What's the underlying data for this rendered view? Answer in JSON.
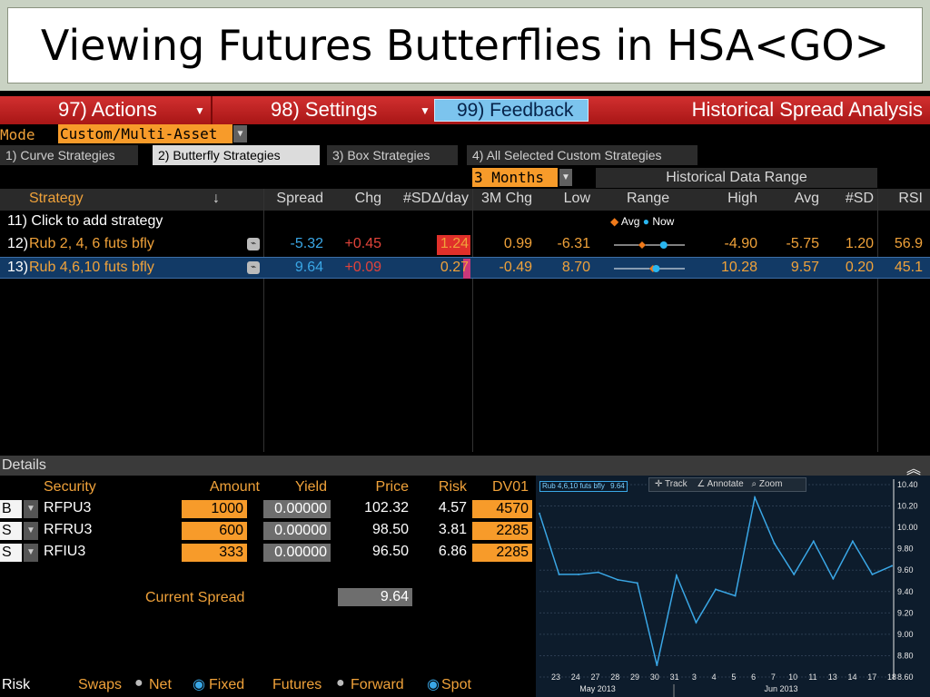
{
  "slide_title": "Viewing Futures Butterflies in HSA<GO>",
  "toolbar": {
    "actions": "97) Actions",
    "settings": "98) Settings",
    "feedback": "99) Feedback",
    "app_title": "Historical Spread Analysis",
    "colors": {
      "bar": "#c21f1f",
      "feedback_bg": "#7cc4ee"
    }
  },
  "mode": {
    "label": "Mode",
    "value": "Custom/Multi-Asset"
  },
  "tabs": [
    {
      "label": "1) Curve Strategies",
      "selected": false
    },
    {
      "label": "2) Butterfly Strategies",
      "selected": true
    },
    {
      "label": "3) Box Strategies",
      "selected": false
    },
    {
      "label": "4) All Selected Custom Strategies",
      "selected": false
    }
  ],
  "range_select": {
    "value": "3 Months",
    "title": "Historical Data Range"
  },
  "columns": {
    "strategy": "Strategy",
    "sort_arrow": "↓",
    "spread": "Spread",
    "chg": "Chg",
    "sd_day": "#SDΔ/day",
    "chg3m": "3M Chg",
    "low": "Low",
    "range": "Range",
    "high": "High",
    "avg": "Avg",
    "sd": "#SD",
    "rsi": "RSI"
  },
  "add_row": {
    "label": "11) Click to add strategy",
    "legend_avg": "Avg",
    "legend_now": "Now"
  },
  "rows": [
    {
      "num": "12)",
      "name": "Rub 2, 4, 6 futs bfly",
      "spread": "-5.32",
      "chg": "+0.45",
      "sd_day": "1.24",
      "sd_day_bar": 1.24,
      "chg3m": "0.99",
      "low": "-6.31",
      "high": "-4.90",
      "avg": "-5.75",
      "sd": "1.20",
      "rsi": "56.9",
      "range_low": -6.31,
      "range_high": -4.9,
      "range_avg": -5.75,
      "range_now": -5.32
    },
    {
      "num": "13)",
      "name": "Rub 4,6,10 futs bfly",
      "spread": "9.64",
      "chg": "+0.09",
      "sd_day": "0.27",
      "sd_day_bar": 0.27,
      "chg3m": "-0.49",
      "low": "8.70",
      "high": "10.28",
      "avg": "9.57",
      "sd": "0.20",
      "rsi": "45.1",
      "range_low": 8.7,
      "range_high": 10.28,
      "range_avg": 9.57,
      "range_now": 9.64
    }
  ],
  "details": {
    "title": "Details",
    "headers": {
      "security": "Security",
      "amount": "Amount",
      "yield": "Yield",
      "price": "Price",
      "risk": "Risk",
      "dv01": "DV01"
    },
    "legs": [
      {
        "side": "B",
        "security": "RFPU3",
        "amount": "1000",
        "yield": "0.00000",
        "price": "102.32",
        "risk": "4.57",
        "dv01": "4570"
      },
      {
        "side": "S",
        "security": "RFRU3",
        "amount": "600",
        "yield": "0.00000",
        "price": "98.50",
        "risk": "3.81",
        "dv01": "2285"
      },
      {
        "side": "S",
        "security": "RFIU3",
        "amount": "333",
        "yield": "0.00000",
        "price": "96.50",
        "risk": "6.86",
        "dv01": "2285"
      }
    ],
    "current_spread_label": "Current Spread",
    "current_spread": "9.64",
    "footer": {
      "risk": "Risk",
      "swaps": "Swaps",
      "net": "Net",
      "fixed": "Fixed",
      "futures": "Futures",
      "forward": "Forward",
      "spot": "Spot"
    }
  },
  "chart_toolbar": {
    "track": "Track",
    "annotate": "Annotate",
    "zoom": "Zoom"
  },
  "chart_data": {
    "type": "line",
    "legend_label": "Rub 4,6,10 futs bfly",
    "legend_value": "9.64",
    "ylim": [
      8.6,
      10.4
    ],
    "yticks": [
      "10.40",
      "10.20",
      "10.00",
      "9.80",
      "9.60",
      "9.40",
      "9.20",
      "9.00",
      "8.80",
      "8.60"
    ],
    "xticks": [
      "23",
      "24",
      "27",
      "28",
      "29",
      "30",
      "31",
      "3",
      "4",
      "5",
      "6",
      "7",
      "10",
      "11",
      "13",
      "14",
      "17",
      "18"
    ],
    "month_labels": [
      "May 2013",
      "Jun 2013"
    ],
    "series": [
      {
        "values": [
          10.13,
          9.56,
          9.56,
          9.58,
          9.51,
          9.48,
          8.71,
          9.55,
          9.11,
          9.42,
          9.36,
          10.28,
          9.85,
          9.56,
          9.87,
          9.52,
          9.87,
          9.56,
          9.64
        ]
      }
    ],
    "line_color": "#3aa7e6"
  }
}
